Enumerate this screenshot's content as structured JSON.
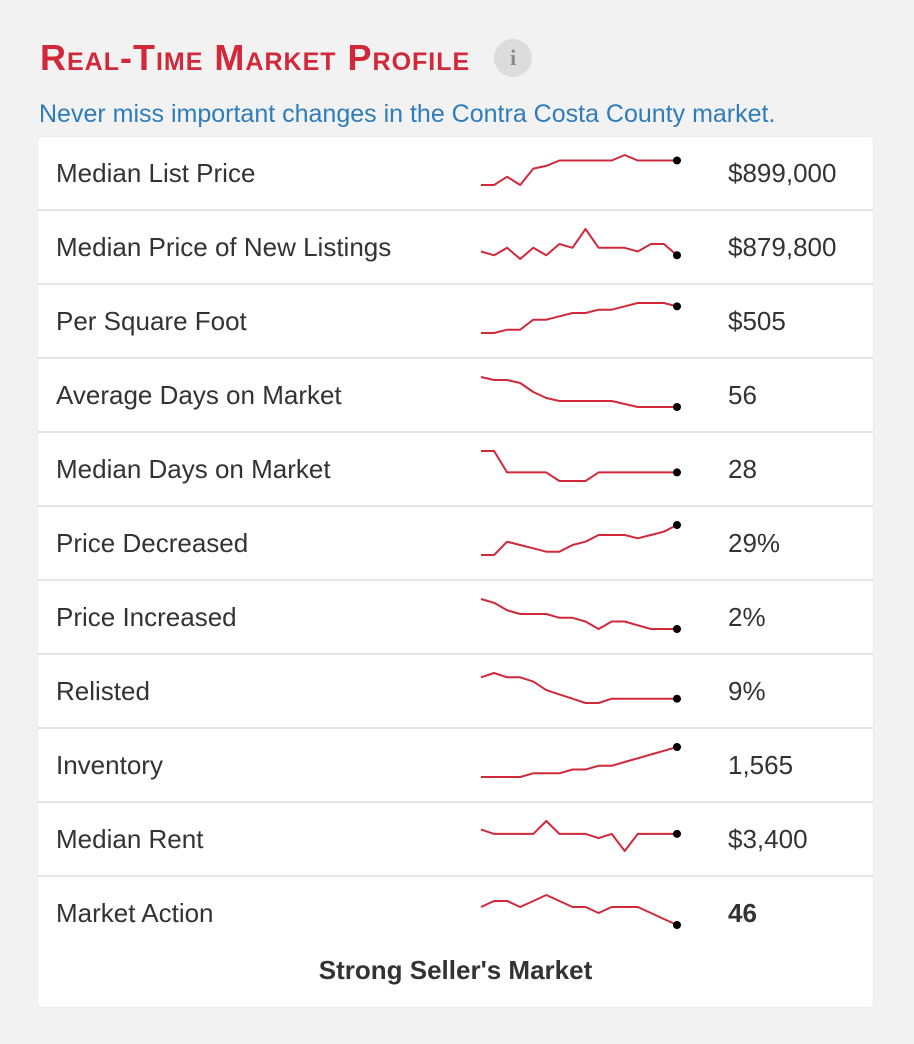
{
  "header": {
    "title": "Real-Time Market Profile",
    "info_icon": "info-icon",
    "subtitle": "Never miss important changes in the Contra Costa County market."
  },
  "colors": {
    "title": "#d1293a",
    "subtitle": "#2f7cba",
    "sparkline": "#d1293a",
    "endpoint": "#000000"
  },
  "rows": [
    {
      "label": "Median List Price",
      "value": "$899,000",
      "bold": false,
      "trend": [
        0,
        0,
        3,
        0,
        6,
        7,
        9,
        9,
        9,
        9,
        9,
        11,
        9,
        9,
        9,
        9
      ]
    },
    {
      "label": "Median Price of New Listings",
      "value": "$879,800",
      "bold": false,
      "trend": [
        3,
        2,
        4,
        1,
        4,
        2,
        5,
        4,
        9,
        4,
        4,
        4,
        3,
        5,
        5,
        2
      ]
    },
    {
      "label": "Per Square Foot",
      "value": "$505",
      "bold": false,
      "trend": [
        0,
        0,
        1,
        1,
        4,
        4,
        5,
        6,
        6,
        7,
        7,
        8,
        9,
        9,
        9,
        8
      ]
    },
    {
      "label": "Average Days on Market",
      "value": "56",
      "bold": false,
      "trend": [
        10,
        9,
        9,
        8,
        5,
        3,
        2,
        2,
        2,
        2,
        2,
        1,
        0,
        0,
        0,
        0
      ]
    },
    {
      "label": "Median Days on Market",
      "value": "28",
      "bold": false,
      "trend": [
        7,
        7,
        2,
        2,
        2,
        2,
        0,
        0,
        0,
        2,
        2,
        2,
        2,
        2,
        2,
        2
      ]
    },
    {
      "label": "Price Decreased",
      "value": "29%",
      "bold": false,
      "trend": [
        0,
        0,
        4,
        3,
        2,
        1,
        1,
        3,
        4,
        6,
        6,
        6,
        5,
        6,
        7,
        9
      ]
    },
    {
      "label": "Price Increased",
      "value": "2%",
      "bold": false,
      "trend": [
        9,
        8,
        6,
        5,
        5,
        5,
        4,
        4,
        3,
        1,
        3,
        3,
        2,
        1,
        1,
        1
      ]
    },
    {
      "label": "Relisted",
      "value": "9%",
      "bold": false,
      "trend": [
        7,
        8,
        7,
        7,
        6,
        4,
        3,
        2,
        1,
        1,
        2,
        2,
        2,
        2,
        2,
        2
      ]
    },
    {
      "label": "Inventory",
      "value": "1,565",
      "bold": false,
      "trend": [
        0,
        0,
        0,
        0,
        1,
        1,
        1,
        2,
        2,
        3,
        3,
        4,
        5,
        6,
        7,
        8
      ]
    },
    {
      "label": "Median Rent",
      "value": "$3,400",
      "bold": false,
      "trend": [
        6,
        5,
        5,
        5,
        5,
        8,
        5,
        5,
        5,
        4,
        5,
        1,
        5,
        5,
        5,
        5
      ]
    },
    {
      "label": "Market Action",
      "value": "46",
      "bold": true,
      "trend": [
        5,
        6,
        6,
        5,
        6,
        7,
        6,
        5,
        5,
        4,
        5,
        5,
        5,
        4,
        3,
        2
      ]
    }
  ],
  "status": "Strong Seller's Market"
}
